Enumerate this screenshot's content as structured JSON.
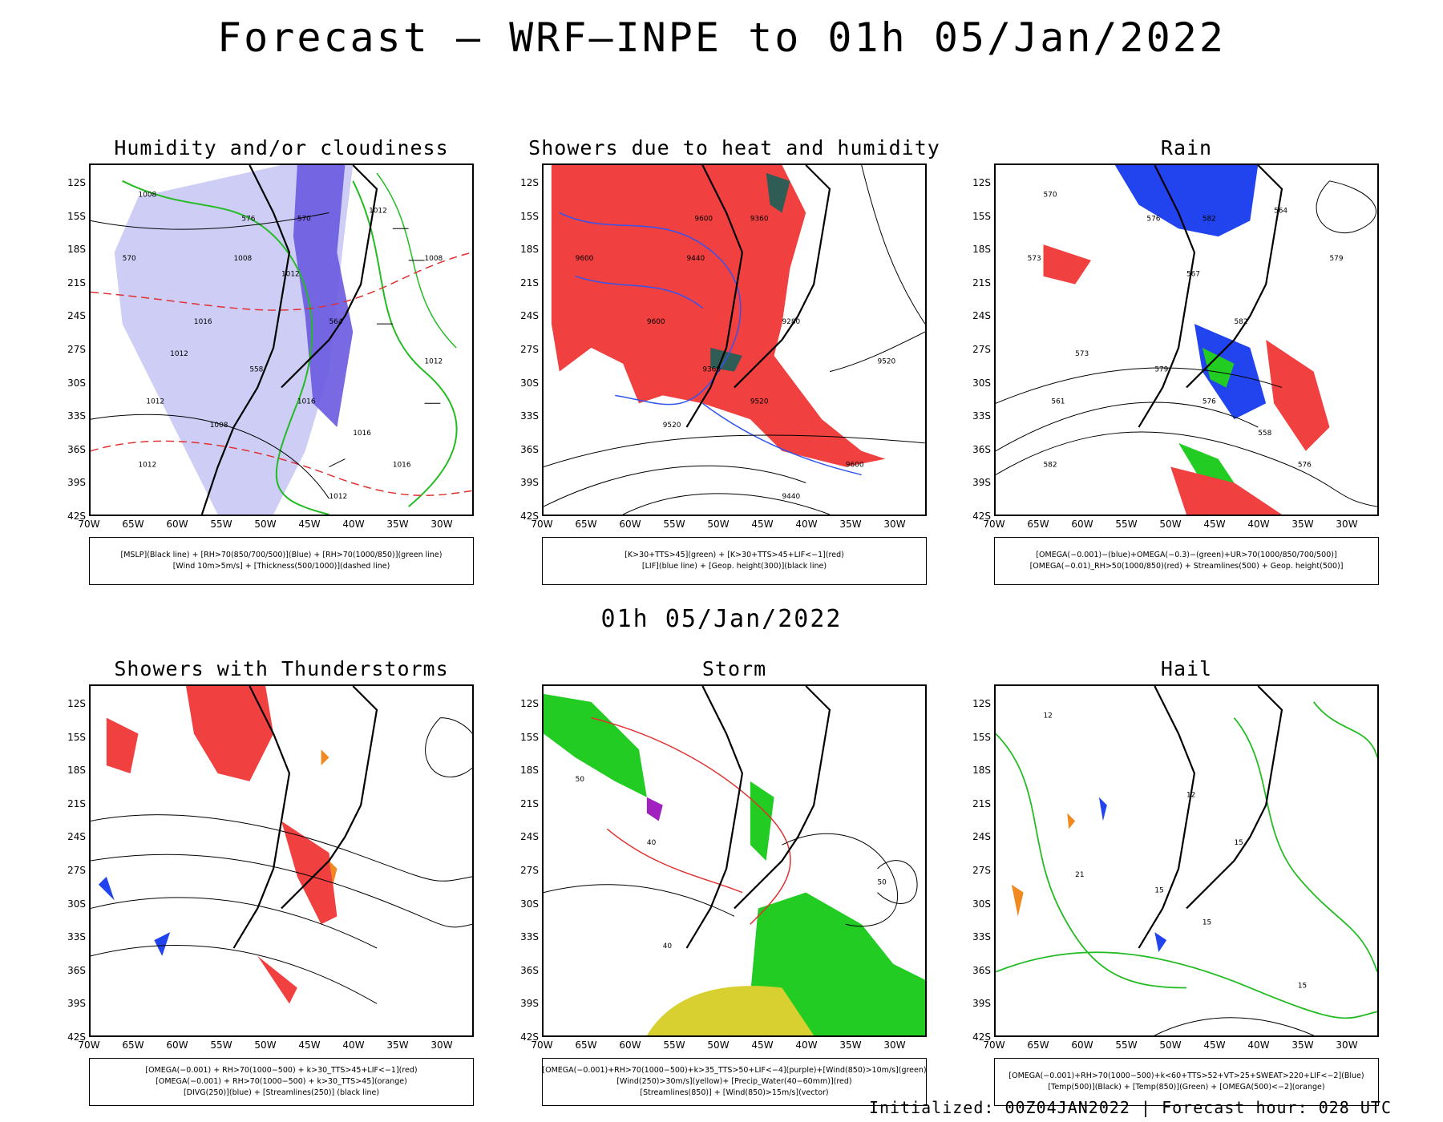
{
  "title": "Forecast — WRF—INPE to 01h 05/Jan/2022",
  "mid_title": "01h 05/Jan/2022",
  "footer": "Initialized: 00Z04JAN2022 | Forecast hour: 028 UTC",
  "axes": {
    "lat_labels": [
      "12S",
      "15S",
      "18S",
      "21S",
      "24S",
      "27S",
      "30S",
      "33S",
      "36S",
      "39S",
      "42S"
    ],
    "lon_labels": [
      "70W",
      "65W",
      "60W",
      "55W",
      "50W",
      "45W",
      "40W",
      "35W",
      "30W"
    ]
  },
  "panels": [
    {
      "title": "Humidity and/or cloudiness",
      "legend": [
        "[MSLP](Black line) + [RH>70(850/700/500)](Blue) + [RH>70(1000/850)](green line)",
        "[Wind 10m>5m/s] + [Thickness(500/1000)](dashed line)"
      ],
      "contour_labels": [
        "1008",
        "1012",
        "1012",
        "1012",
        "1016",
        "1012",
        "1008",
        "576",
        "570",
        "1016",
        "1008",
        "1012",
        "1012",
        "1008",
        "570",
        "564",
        "558",
        "1016",
        "1016",
        "1012"
      ]
    },
    {
      "title": "Showers due to heat and humidity",
      "legend": [
        "[K>30+TTS>45](green) + [K>30+TTS>45+LIF<−1](red)",
        "[LIF](blue line) + [Geop. height(300)](black line)"
      ],
      "contour_labels": [
        "9600",
        "9600",
        "9600",
        "9520",
        "9520",
        "9440",
        "9440",
        "9360",
        "9280",
        "9360",
        "9520",
        "9600"
      ]
    },
    {
      "title": "Rain",
      "legend": [
        "[OMEGA(−0.001)−(blue)+OMEGA(−0.3)−(green)+UR>70(1000/850/700/500)]",
        "[OMEGA(−0.01)_RH>50(1000/850)(red) + Streamlines(500) + Geop. height(500)]"
      ],
      "contour_labels": [
        "582",
        "582",
        "579",
        "576",
        "576",
        "573",
        "570",
        "567",
        "564",
        "561",
        "558",
        "582",
        "579",
        "576",
        "573"
      ]
    },
    {
      "title": "Showers with Thunderstorms",
      "legend": [
        "[OMEGA(−0.001) + RH>70(1000−500) + k>30_TTS>45+LIF<−1](red)",
        "[OMEGA(−0.001) + RH>70(1000−500) + k>30_TTS>45](orange)",
        "[DIVG(250)](blue) + [Streamlines(250)] (black line)"
      ],
      "contour_labels": []
    },
    {
      "title": "Storm",
      "legend": [
        "[OMEGA(−0.001)+RH>70(1000−500)+k>35_TTS>50+LIF<−4](purple)+[Wind(850)>10m/s](green)",
        "[Wind(250)>30m/s](yellow)+ [Precip_Water(40−60mm)](red)",
        "[Streamlines(850)] + [Wind(850)>15m/s](vector)"
      ],
      "contour_labels": [
        "50",
        "40",
        "40",
        "50"
      ]
    },
    {
      "title": "Hail",
      "legend": [
        "[OMEGA(−0.001)+RH>70(1000−500)+k<60+TTS>52+VT>25+SWEAT>220+LIF<−2](Blue)",
        "[Temp(500)](Black) + [Temp(850)](Green) + [OMEGA(500)<−2](orange)"
      ],
      "contour_labels": [
        "15",
        "15",
        "15",
        "15",
        "21",
        "12",
        "12"
      ]
    }
  ]
}
